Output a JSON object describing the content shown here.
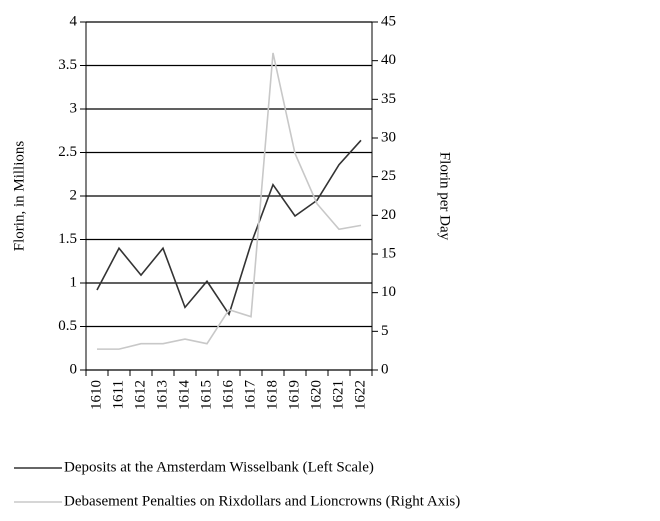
{
  "chart_data": {
    "type": "line",
    "categories": [
      "1610",
      "1611",
      "1612",
      "1613",
      "1614",
      "1615",
      "1616",
      "1617",
      "1618",
      "1619",
      "1620",
      "1621",
      "1622"
    ],
    "series": [
      {
        "name": "Deposits at the Amsterdam Wisselbank (Left Scale)",
        "color": "#333333",
        "axis": "y",
        "values": [
          0.92,
          1.4,
          1.09,
          1.4,
          0.72,
          1.02,
          0.64,
          1.45,
          2.13,
          1.77,
          1.95,
          2.36,
          2.64
        ]
      },
      {
        "name": "Debasement Penalties on Rixdollars and Lioncrowns (Right Axis)",
        "color": "#c8c8c8",
        "axis": "y2",
        "values": [
          2.7,
          2.7,
          3.4,
          3.4,
          4.0,
          3.4,
          7.8,
          6.9,
          41.0,
          28.0,
          21.5,
          18.2,
          18.7
        ]
      }
    ],
    "ylabel": "Florin, in Millions",
    "y2label": "Florin per Day",
    "ylim": [
      0,
      4
    ],
    "yticks": [
      0,
      0.5,
      1,
      1.5,
      2,
      2.5,
      3,
      3.5,
      4
    ],
    "y2lim": [
      0,
      45
    ],
    "y2ticks": [
      0,
      5,
      10,
      15,
      20,
      25,
      30,
      35,
      40,
      45
    ],
    "grid": true
  }
}
